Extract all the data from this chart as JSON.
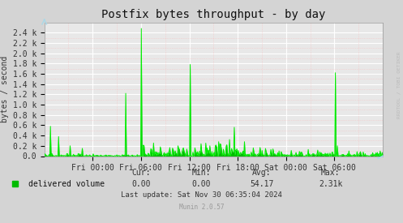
{
  "title": "Postfix bytes throughput - by day",
  "ylabel": "bytes / second",
  "background_color": "#d4d4d4",
  "plot_bg_color": "#e8e8e8",
  "grid_color_major": "#ffffff",
  "grid_color_minor": "#ffaaaa",
  "line_color": "#00ee00",
  "line_color_fill": "#00bb00",
  "title_fontsize": 10,
  "tick_fontsize": 7,
  "ylabel_fontsize": 7,
  "xtick_labels": [
    "Fri 00:00",
    "Fri 06:00",
    "Fri 12:00",
    "Fri 18:00",
    "Sat 00:00",
    "Sat 06:00"
  ],
  "xtick_positions": [
    0.1667,
    0.3333,
    0.5,
    0.6667,
    0.8333,
    1.0
  ],
  "ytick_labels": [
    "0.0",
    "0.2 k",
    "0.4 k",
    "0.6 k",
    "0.8 k",
    "1.0 k",
    "1.2 k",
    "1.4 k",
    "1.6 k",
    "1.8 k",
    "2.0 k",
    "2.2 k",
    "2.4 k"
  ],
  "ytick_values": [
    0,
    200,
    400,
    600,
    800,
    1000,
    1200,
    1400,
    1600,
    1800,
    2000,
    2200,
    2400
  ],
  "ylim": [
    0,
    2600
  ],
  "xlim": [
    0,
    1.1667
  ],
  "legend_label": "delivered volume",
  "legend_color": "#00bb00",
  "cur_val": "0.00",
  "min_val": "0.00",
  "avg_val": "54.17",
  "max_val": "2.31k",
  "last_update": "Last update: Sat Nov 30 06:35:04 2024",
  "munin_version": "Munin 2.0.57",
  "watermark": "RRDTOOL / TOBI OETIKER",
  "n_points": 500,
  "figsize": [
    4.97,
    2.75
  ],
  "dpi": 100
}
